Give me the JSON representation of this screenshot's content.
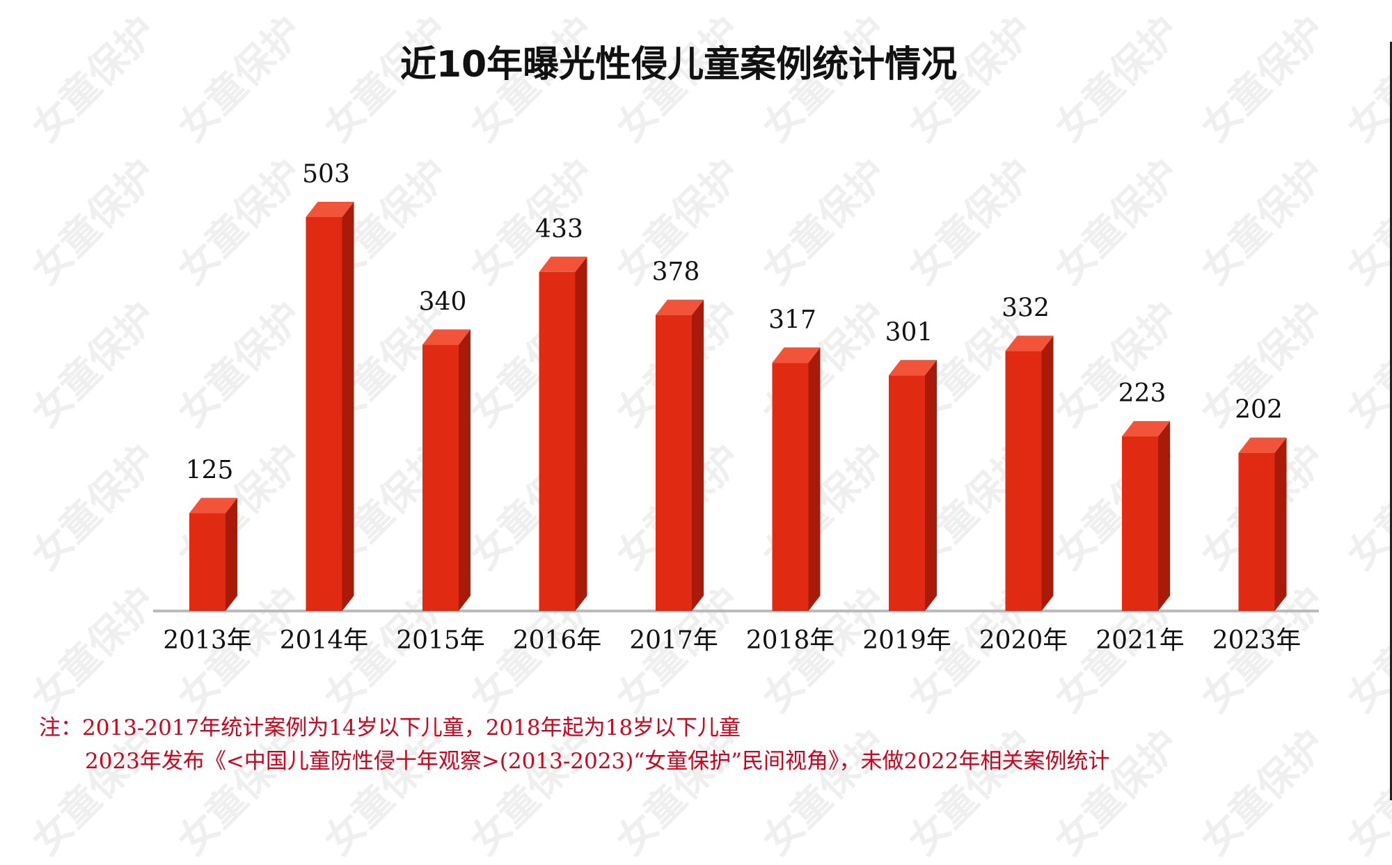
{
  "watermark": "女童保护",
  "colors": {
    "bar_front": "#e02a12",
    "bar_side": "#a91a08",
    "bar_top": "#f2543a",
    "axis": "#bbbbbb",
    "note": "#d0021b"
  },
  "chart_data": {
    "type": "bar",
    "title": "近10年曝光性侵儿童案例统计情况",
    "categories": [
      "2013年",
      "2014年",
      "2015年",
      "2016年",
      "2017年",
      "2018年",
      "2019年",
      "2020年",
      "2021年",
      "2023年"
    ],
    "values": [
      125,
      503,
      340,
      433,
      378,
      317,
      301,
      332,
      223,
      202
    ],
    "data_labels": true,
    "grid": false,
    "legend": "none"
  },
  "notes": {
    "line1": "注：2013-2017年统计案例为14岁以下儿童，2018年起为18岁以下儿童",
    "line2": "2023年发布《<中国儿童防性侵十年观察>(2013-2023)“女童保护”民间视角》，未做2022年相关案例统计"
  }
}
